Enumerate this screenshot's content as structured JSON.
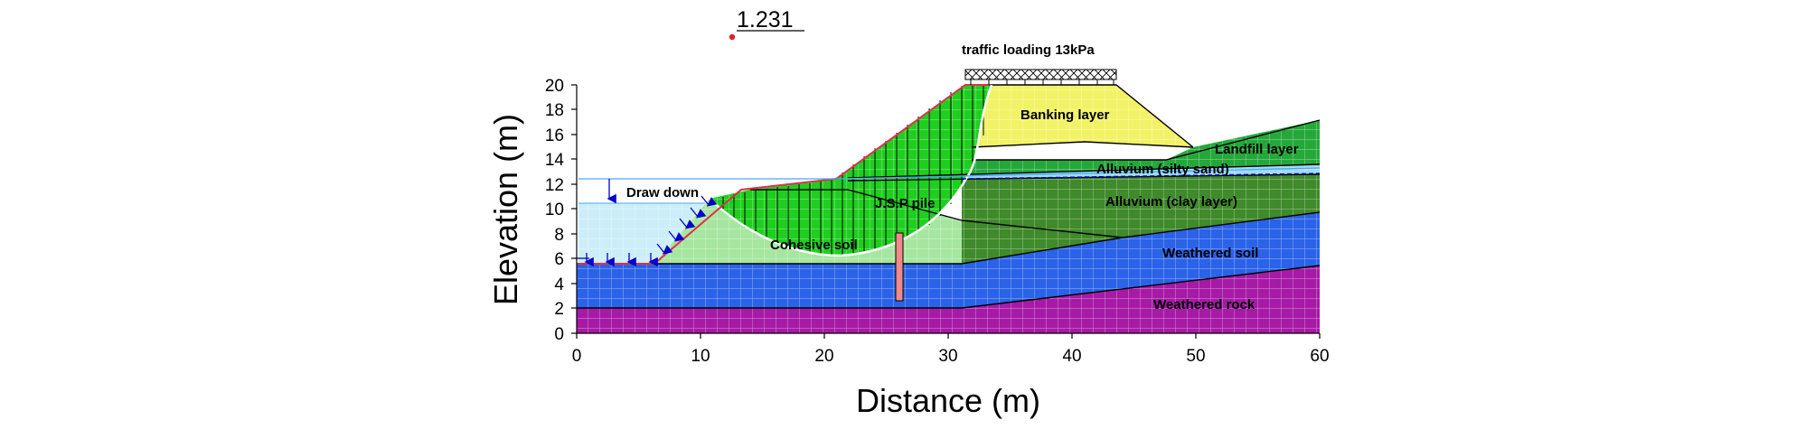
{
  "factor_of_safety": "1.231",
  "axes": {
    "x_title": "Distance (m)",
    "y_title": "Elevation (m)",
    "x_ticks": [
      "0",
      "10",
      "20",
      "30",
      "40",
      "50",
      "60"
    ],
    "y_ticks": [
      "0",
      "2",
      "4",
      "6",
      "8",
      "10",
      "12",
      "14",
      "16",
      "18",
      "20"
    ]
  },
  "labels": {
    "traffic": "traffic loading 13kPa",
    "draw_down": "Draw down",
    "banking": "Banking layer",
    "landfill": "Landfill layer",
    "alluvium_silty": "Alluvium (silty sand)",
    "alluvium_clay": "Alluvium (clay layer)",
    "jsp_pile": "J.S.P pile",
    "cohesive": "Cohesive soil",
    "weathered_soil": "Weathered soil",
    "weathered_rock": "Weathered rock"
  },
  "colors": {
    "weathered_rock": "#a61aa6",
    "weathered_soil": "#2a62e8",
    "clay": "#3f8a2a",
    "silty": "#9fdcf2",
    "landfill": "#25a83a",
    "banking": "#f2f266",
    "cohesive": "#a6e6a0",
    "slip_mass": "#1fcf1f",
    "water": "#cdeef8",
    "pile": "#f08a8a"
  }
}
